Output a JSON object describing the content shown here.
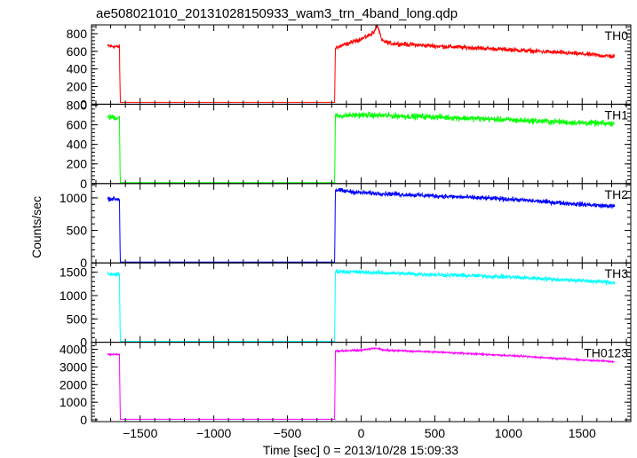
{
  "chart_data": {
    "type": "line",
    "title": "ae508021010_20131028150933_wam3_trn_4band_long.qdp",
    "xlabel": "Time [sec] 0 = 2013/10/28 15:09:33",
    "ylabel": "Counts/sec",
    "xlim": [
      -1830,
      1830
    ],
    "x_ticks": [
      -1500,
      -1000,
      -500,
      0,
      500,
      1000,
      1500
    ],
    "x_tick_labels": [
      "−1500",
      "−1000",
      "−500",
      "0",
      "500",
      "1000",
      "1500"
    ],
    "panels": [
      {
        "name": "TH0",
        "color": "#ff0000",
        "ylim": [
          0,
          900
        ],
        "y_ticks": [
          0,
          200,
          400,
          600,
          800
        ],
        "y_tick_labels": [
          "0",
          "200",
          "400",
          "600",
          "800"
        ],
        "noise": 25,
        "points": [
          [
            -1720,
            660
          ],
          [
            -1640,
            650
          ],
          [
            -1635,
            20
          ],
          [
            -180,
            20
          ],
          [
            -175,
            640
          ],
          [
            -100,
            680
          ],
          [
            30,
            760
          ],
          [
            90,
            820
          ],
          [
            110,
            900
          ],
          [
            140,
            720
          ],
          [
            200,
            690
          ],
          [
            500,
            660
          ],
          [
            1000,
            620
          ],
          [
            1500,
            570
          ],
          [
            1720,
            540
          ]
        ]
      },
      {
        "name": "TH1",
        "color": "#00ff00",
        "ylim": [
          0,
          810
        ],
        "y_ticks": [
          0,
          200,
          400,
          600,
          800
        ],
        "y_tick_labels": [
          "0",
          "200",
          "400",
          "600",
          "800"
        ],
        "noise": 30,
        "points": [
          [
            -1720,
            680
          ],
          [
            -1640,
            670
          ],
          [
            -1635,
            5
          ],
          [
            -180,
            5
          ],
          [
            -175,
            690
          ],
          [
            0,
            700
          ],
          [
            500,
            680
          ],
          [
            1000,
            650
          ],
          [
            1500,
            620
          ],
          [
            1720,
            610
          ]
        ]
      },
      {
        "name": "TH2",
        "color": "#0000ff",
        "ylim": [
          0,
          1220
        ],
        "y_ticks": [
          0,
          500,
          1000
        ],
        "y_tick_labels": [
          "0",
          "500",
          "1000"
        ],
        "noise": 35,
        "points": [
          [
            -1720,
            990
          ],
          [
            -1640,
            980
          ],
          [
            -1635,
            10
          ],
          [
            -180,
            10
          ],
          [
            -175,
            1120
          ],
          [
            0,
            1080
          ],
          [
            500,
            1030
          ],
          [
            1000,
            980
          ],
          [
            1500,
            900
          ],
          [
            1720,
            870
          ]
        ]
      },
      {
        "name": "TH3",
        "color": "#00ffff",
        "ylim": [
          0,
          1700
        ],
        "y_ticks": [
          0,
          500,
          1000,
          1500
        ],
        "y_tick_labels": [
          "0",
          "500",
          "1000",
          "1500"
        ],
        "noise": 45,
        "points": [
          [
            -1720,
            1460
          ],
          [
            -1640,
            1450
          ],
          [
            -1635,
            10
          ],
          [
            -180,
            10
          ],
          [
            -175,
            1520
          ],
          [
            0,
            1500
          ],
          [
            500,
            1450
          ],
          [
            1000,
            1400
          ],
          [
            1500,
            1320
          ],
          [
            1720,
            1280
          ]
        ]
      },
      {
        "name": "TH0123",
        "color": "#ff00ff",
        "ylim": [
          -100,
          4400
        ],
        "y_ticks": [
          0,
          1000,
          2000,
          3000,
          4000
        ],
        "y_tick_labels": [
          "0",
          "1000",
          "2000",
          "3000",
          "4000"
        ],
        "noise": 50,
        "points": [
          [
            -1720,
            3720
          ],
          [
            -1640,
            3700
          ],
          [
            -1635,
            30
          ],
          [
            -180,
            30
          ],
          [
            -175,
            3900
          ],
          [
            0,
            3950
          ],
          [
            100,
            4080
          ],
          [
            150,
            3950
          ],
          [
            500,
            3850
          ],
          [
            1000,
            3650
          ],
          [
            1500,
            3400
          ],
          [
            1720,
            3300
          ]
        ]
      }
    ]
  }
}
